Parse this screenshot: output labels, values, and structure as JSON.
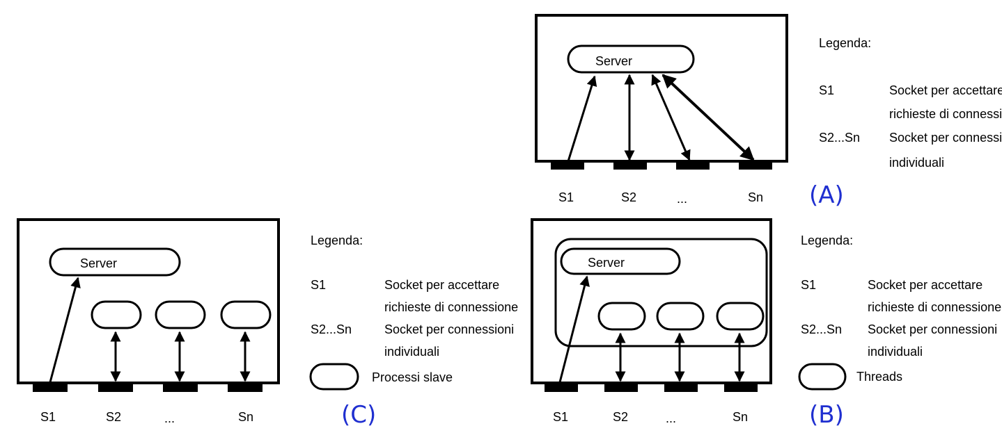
{
  "legend_title": "Legenda:",
  "legend_entries": [
    {
      "key": "S1",
      "line1": "Socket per accettare",
      "line2": "richieste di connessione"
    },
    {
      "key": "S2...Sn",
      "line1": "Socket per connessioni",
      "line2": "individuali"
    }
  ],
  "server_label": "Server",
  "socket_labels": [
    "S1",
    "S2",
    "...",
    "Sn"
  ],
  "panel_A": {
    "tag": "(A)"
  },
  "panel_B": {
    "tag": "(B)",
    "shape_legend": "Threads"
  },
  "panel_C": {
    "tag": "(C)",
    "shape_legend": "Processi slave"
  },
  "colors": {
    "ink": "#000000",
    "tag": "#1f2fd0"
  }
}
